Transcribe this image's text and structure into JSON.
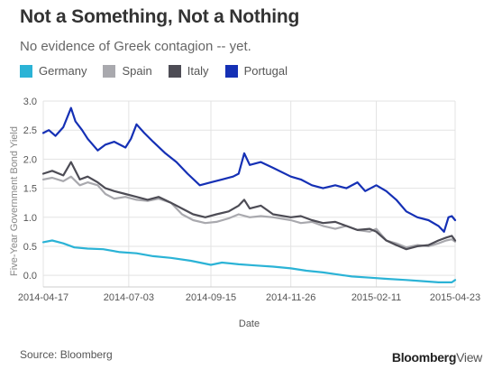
{
  "header": {
    "title": "Not a Something, Not a Nothing",
    "subtitle": "No evidence of Greek contagion -- yet."
  },
  "footer": {
    "source": "Source: Bloomberg",
    "brand_bold": "Bloomberg",
    "brand_light": "View"
  },
  "colors": {
    "Germany": "#2bb3d6",
    "Spain": "#a9a9ae",
    "Italy": "#4d4c55",
    "Portugal": "#1530b5"
  },
  "chart_data": {
    "type": "line",
    "title": "Not a Something, Not a Nothing",
    "subtitle": "No evidence of Greek contagion -- yet.",
    "xlabel": "Date",
    "ylabel": "Five-Year Government Bond Yield",
    "ylim": [
      -0.2,
      3.0
    ],
    "yticks": [
      "3.0",
      "2.5",
      "2.0",
      "1.5",
      "1.0",
      "0.5",
      "0.0"
    ],
    "yticks_values": [
      3.0,
      2.5,
      2.0,
      1.5,
      1.0,
      0.5,
      0.0
    ],
    "xticks": [
      "2014-04-17",
      "2014-07-03",
      "2014-09-15",
      "2014-11-26",
      "2015-02-11",
      "2015-04-23"
    ],
    "x_range": [
      "2014-04-17",
      "2015-04-23"
    ],
    "grid": true,
    "legend_position": "top",
    "series": [
      {
        "name": "Germany",
        "points": [
          [
            "2014-04-17",
            0.57
          ],
          [
            "2014-04-25",
            0.6
          ],
          [
            "2014-05-05",
            0.55
          ],
          [
            "2014-05-15",
            0.48
          ],
          [
            "2014-05-27",
            0.46
          ],
          [
            "2014-06-10",
            0.45
          ],
          [
            "2014-06-25",
            0.4
          ],
          [
            "2014-07-10",
            0.38
          ],
          [
            "2014-07-25",
            0.33
          ],
          [
            "2014-08-10",
            0.3
          ],
          [
            "2014-08-28",
            0.25
          ],
          [
            "2014-09-15",
            0.18
          ],
          [
            "2014-09-25",
            0.22
          ],
          [
            "2014-10-10",
            0.19
          ],
          [
            "2014-10-25",
            0.17
          ],
          [
            "2014-11-10",
            0.15
          ],
          [
            "2014-11-26",
            0.12
          ],
          [
            "2014-12-10",
            0.08
          ],
          [
            "2014-12-25",
            0.05
          ],
          [
            "2015-01-05",
            0.02
          ],
          [
            "2015-01-20",
            -0.02
          ],
          [
            "2015-02-05",
            -0.04
          ],
          [
            "2015-02-20",
            -0.06
          ],
          [
            "2015-03-10",
            -0.08
          ],
          [
            "2015-03-25",
            -0.1
          ],
          [
            "2015-04-08",
            -0.12
          ],
          [
            "2015-04-20",
            -0.12
          ],
          [
            "2015-04-23",
            -0.08
          ]
        ]
      },
      {
        "name": "Spain",
        "points": [
          [
            "2014-04-17",
            1.65
          ],
          [
            "2014-04-25",
            1.68
          ],
          [
            "2014-05-05",
            1.62
          ],
          [
            "2014-05-12",
            1.7
          ],
          [
            "2014-05-20",
            1.55
          ],
          [
            "2014-05-27",
            1.6
          ],
          [
            "2014-06-05",
            1.55
          ],
          [
            "2014-06-12",
            1.4
          ],
          [
            "2014-06-20",
            1.32
          ],
          [
            "2014-06-30",
            1.35
          ],
          [
            "2014-07-10",
            1.3
          ],
          [
            "2014-07-20",
            1.28
          ],
          [
            "2014-07-30",
            1.32
          ],
          [
            "2014-08-10",
            1.25
          ],
          [
            "2014-08-20",
            1.05
          ],
          [
            "2014-08-30",
            0.95
          ],
          [
            "2014-09-10",
            0.9
          ],
          [
            "2014-09-20",
            0.92
          ],
          [
            "2014-10-01",
            0.98
          ],
          [
            "2014-10-10",
            1.05
          ],
          [
            "2014-10-20",
            1.0
          ],
          [
            "2014-10-30",
            1.02
          ],
          [
            "2014-11-10",
            1.0
          ],
          [
            "2014-11-26",
            0.95
          ],
          [
            "2014-12-05",
            0.9
          ],
          [
            "2014-12-15",
            0.92
          ],
          [
            "2014-12-25",
            0.85
          ],
          [
            "2015-01-05",
            0.8
          ],
          [
            "2015-01-15",
            0.85
          ],
          [
            "2015-01-25",
            0.78
          ],
          [
            "2015-02-05",
            0.75
          ],
          [
            "2015-02-11",
            0.8
          ],
          [
            "2015-02-20",
            0.6
          ],
          [
            "2015-03-01",
            0.55
          ],
          [
            "2015-03-10",
            0.48
          ],
          [
            "2015-03-20",
            0.52
          ],
          [
            "2015-03-30",
            0.5
          ],
          [
            "2015-04-08",
            0.55
          ],
          [
            "2015-04-15",
            0.6
          ],
          [
            "2015-04-20",
            0.62
          ],
          [
            "2015-04-23",
            0.58
          ]
        ]
      },
      {
        "name": "Italy",
        "points": [
          [
            "2014-04-17",
            1.75
          ],
          [
            "2014-04-25",
            1.8
          ],
          [
            "2014-05-05",
            1.72
          ],
          [
            "2014-05-12",
            1.95
          ],
          [
            "2014-05-20",
            1.65
          ],
          [
            "2014-05-27",
            1.7
          ],
          [
            "2014-06-05",
            1.6
          ],
          [
            "2014-06-12",
            1.5
          ],
          [
            "2014-06-20",
            1.45
          ],
          [
            "2014-06-30",
            1.4
          ],
          [
            "2014-07-10",
            1.35
          ],
          [
            "2014-07-20",
            1.3
          ],
          [
            "2014-07-30",
            1.35
          ],
          [
            "2014-08-10",
            1.25
          ],
          [
            "2014-08-20",
            1.15
          ],
          [
            "2014-08-30",
            1.05
          ],
          [
            "2014-09-10",
            1.0
          ],
          [
            "2014-09-20",
            1.05
          ],
          [
            "2014-10-01",
            1.1
          ],
          [
            "2014-10-10",
            1.2
          ],
          [
            "2014-10-15",
            1.3
          ],
          [
            "2014-10-20",
            1.15
          ],
          [
            "2014-10-30",
            1.2
          ],
          [
            "2014-11-10",
            1.05
          ],
          [
            "2014-11-26",
            1.0
          ],
          [
            "2014-12-05",
            1.02
          ],
          [
            "2014-12-15",
            0.95
          ],
          [
            "2014-12-25",
            0.9
          ],
          [
            "2015-01-05",
            0.92
          ],
          [
            "2015-01-15",
            0.85
          ],
          [
            "2015-01-25",
            0.78
          ],
          [
            "2015-02-05",
            0.8
          ],
          [
            "2015-02-11",
            0.75
          ],
          [
            "2015-02-20",
            0.6
          ],
          [
            "2015-03-01",
            0.52
          ],
          [
            "2015-03-10",
            0.45
          ],
          [
            "2015-03-20",
            0.5
          ],
          [
            "2015-03-30",
            0.52
          ],
          [
            "2015-04-08",
            0.6
          ],
          [
            "2015-04-15",
            0.65
          ],
          [
            "2015-04-20",
            0.68
          ],
          [
            "2015-04-23",
            0.6
          ]
        ]
      },
      {
        "name": "Portugal",
        "points": [
          [
            "2014-04-17",
            2.45
          ],
          [
            "2014-04-22",
            2.5
          ],
          [
            "2014-04-28",
            2.4
          ],
          [
            "2014-05-05",
            2.55
          ],
          [
            "2014-05-12",
            2.88
          ],
          [
            "2014-05-16",
            2.65
          ],
          [
            "2014-05-22",
            2.5
          ],
          [
            "2014-05-27",
            2.35
          ],
          [
            "2014-06-05",
            2.15
          ],
          [
            "2014-06-12",
            2.25
          ],
          [
            "2014-06-20",
            2.3
          ],
          [
            "2014-06-30",
            2.2
          ],
          [
            "2014-07-05",
            2.35
          ],
          [
            "2014-07-10",
            2.6
          ],
          [
            "2014-07-17",
            2.45
          ],
          [
            "2014-07-25",
            2.3
          ],
          [
            "2014-08-05",
            2.1
          ],
          [
            "2014-08-15",
            1.95
          ],
          [
            "2014-08-25",
            1.75
          ],
          [
            "2014-09-05",
            1.55
          ],
          [
            "2014-09-15",
            1.6
          ],
          [
            "2014-09-25",
            1.65
          ],
          [
            "2014-10-05",
            1.7
          ],
          [
            "2014-10-10",
            1.75
          ],
          [
            "2014-10-15",
            2.1
          ],
          [
            "2014-10-20",
            1.9
          ],
          [
            "2014-10-30",
            1.95
          ],
          [
            "2014-11-10",
            1.85
          ],
          [
            "2014-11-26",
            1.7
          ],
          [
            "2014-12-05",
            1.65
          ],
          [
            "2014-12-15",
            1.55
          ],
          [
            "2014-12-25",
            1.5
          ],
          [
            "2015-01-05",
            1.55
          ],
          [
            "2015-01-15",
            1.5
          ],
          [
            "2015-01-25",
            1.6
          ],
          [
            "2015-02-01",
            1.45
          ],
          [
            "2015-02-11",
            1.55
          ],
          [
            "2015-02-20",
            1.45
          ],
          [
            "2015-03-01",
            1.3
          ],
          [
            "2015-03-10",
            1.1
          ],
          [
            "2015-03-20",
            1.0
          ],
          [
            "2015-03-30",
            0.95
          ],
          [
            "2015-04-08",
            0.85
          ],
          [
            "2015-04-13",
            0.75
          ],
          [
            "2015-04-17",
            1.0
          ],
          [
            "2015-04-20",
            1.02
          ],
          [
            "2015-04-23",
            0.95
          ]
        ]
      }
    ]
  }
}
